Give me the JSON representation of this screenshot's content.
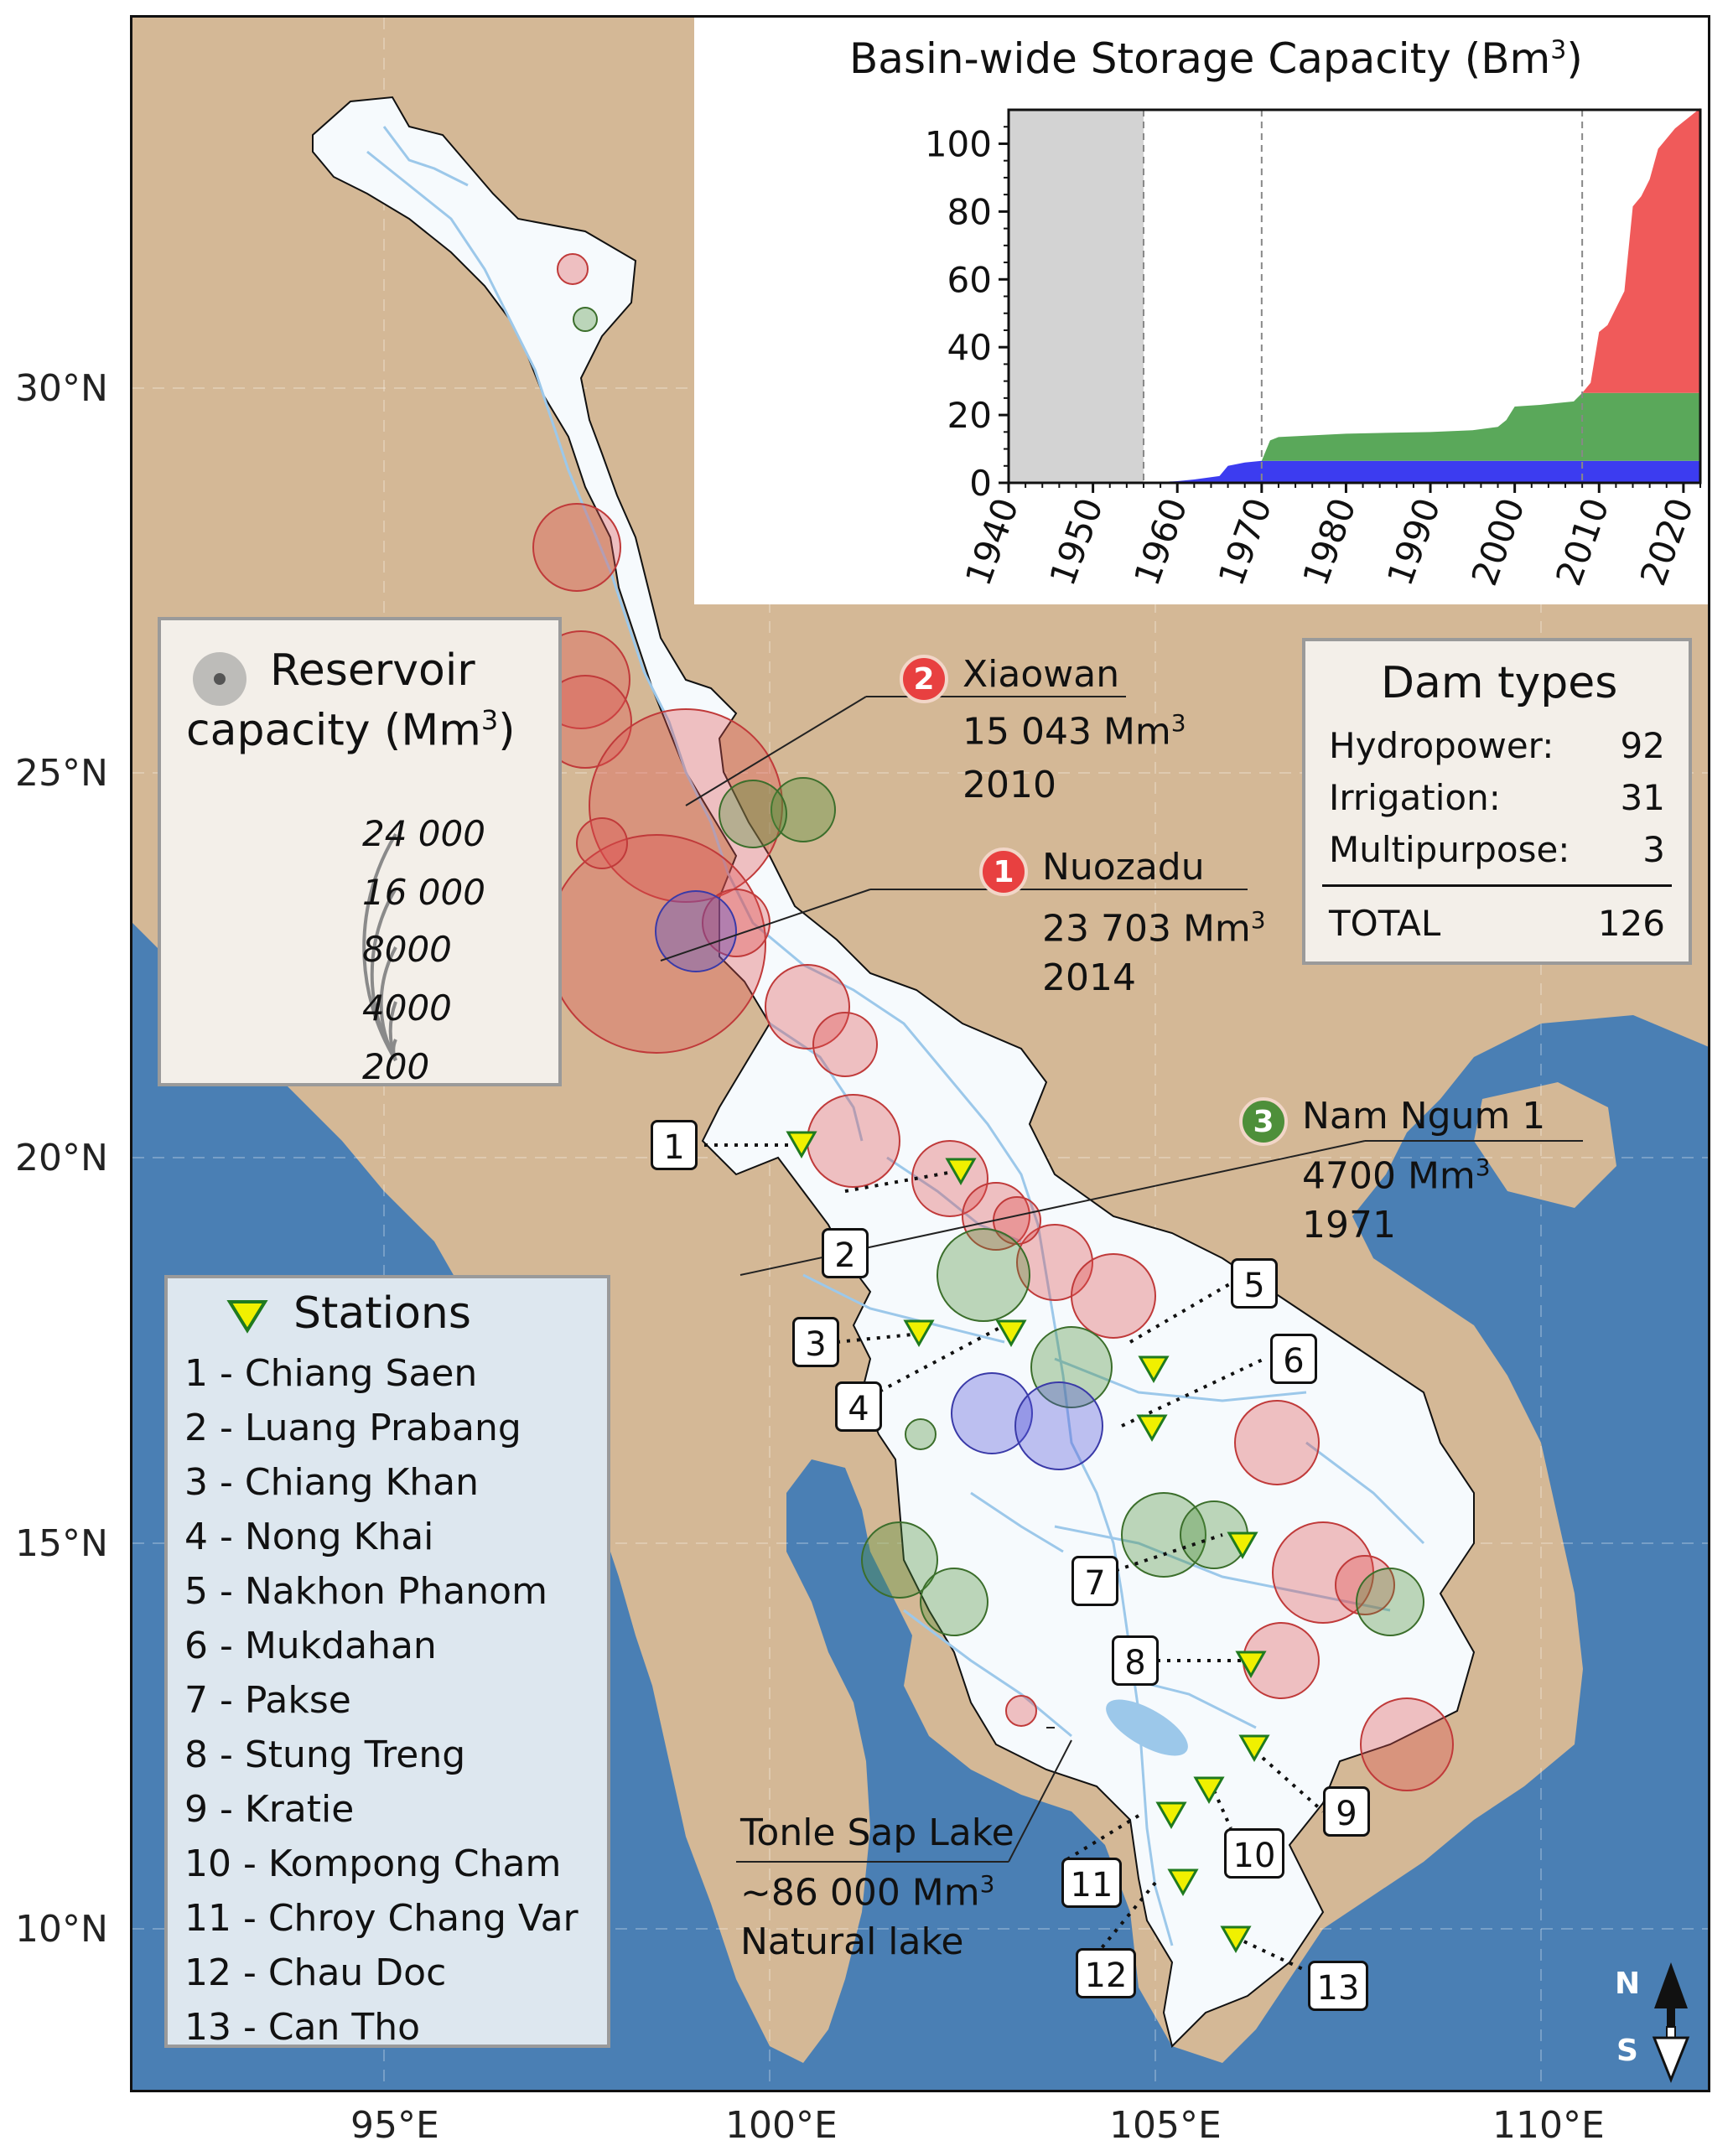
{
  "axes": {
    "lat_labels": [
      "30°N",
      "25°N",
      "20°N",
      "15°N",
      "10°N"
    ],
    "lon_labels": [
      "95°E",
      "100°E",
      "105°E",
      "110°E"
    ]
  },
  "inset_chart": {
    "title_main": "Basin-wide Storage Capacity (Bm",
    "title_sup": "3",
    "title_end": ")"
  },
  "chart_data": {
    "type": "area",
    "title": "Basin-wide Storage Capacity (Bm³)",
    "xlim": [
      1940,
      2022
    ],
    "ylim": [
      0,
      110
    ],
    "x_ticks": [
      "1940",
      "1950",
      "1960",
      "1970",
      "1980",
      "1990",
      "2000",
      "2010",
      "2020"
    ],
    "y_ticks": [
      "0",
      "20",
      "40",
      "60",
      "80",
      "100"
    ],
    "shaded_period": [
      1940,
      1956
    ],
    "dashed_lines": [
      1956,
      1970,
      2008
    ],
    "colors": {
      "blue": "#3c3cf0",
      "green": "#5aa85a",
      "red": "#f05a5a",
      "shade": "#d3d3d3"
    },
    "series": [
      {
        "color": "#3c3cf0",
        "x": [
          1956,
          1960,
          1962,
          1965,
          1966,
          1968,
          1970,
          1971,
          2022
        ],
        "values": [
          0,
          0.5,
          1,
          2,
          5,
          6,
          6.5,
          6.5,
          6.5
        ]
      },
      {
        "color": "#5aa85a",
        "x": [
          1956,
          1970,
          1971,
          1972,
          1980,
          1990,
          1995,
          1998,
          1999,
          2000,
          2003,
          2005,
          2007,
          2008,
          2022
        ],
        "values": [
          0,
          0,
          6,
          7,
          8,
          8.5,
          9,
          10,
          12,
          16,
          16.5,
          17,
          17.5,
          20,
          20
        ]
      },
      {
        "color": "#f05a5a",
        "x": [
          2008,
          2009,
          2010,
          2011,
          2012,
          2013,
          2014,
          2015,
          2016,
          2017,
          2018,
          2019,
          2020,
          2021,
          2022
        ],
        "values": [
          0,
          3,
          18,
          20,
          25,
          30,
          55,
          58,
          63,
          72,
          75,
          78,
          80,
          82,
          84
        ]
      }
    ]
  },
  "reservoir_legend": {
    "title_line1": "Reservoir",
    "title_line2": "capacity (Mm",
    "title_sup": "3",
    "title_end": ")",
    "sizes": [
      "24 000",
      "16 000",
      "8000",
      "4000",
      "200"
    ]
  },
  "dam_types": {
    "title": "Dam types",
    "rows": [
      {
        "label": "Hydropower:",
        "value": "92"
      },
      {
        "label": "Irrigation:",
        "value": "31"
      },
      {
        "label": "Multipurpose:",
        "value": "3"
      }
    ],
    "total_label": "TOTAL",
    "total_value": "126"
  },
  "annotations": [
    {
      "badge": "2",
      "badge_color": "#e84040",
      "name": "Xiaowan",
      "capacity": "15 043 Mm",
      "sup": "3",
      "year": "2010"
    },
    {
      "badge": "1",
      "badge_color": "#e84040",
      "name": "Nuozadu",
      "capacity": "23 703 Mm",
      "sup": "3",
      "year": "2014"
    },
    {
      "badge": "3",
      "badge_color": "#4e8f3a",
      "name": "Nam Ngum 1",
      "capacity": "4700 Mm",
      "sup": "3",
      "year": "1971"
    }
  ],
  "tonle_sap": {
    "name": "Tonle Sap Lake",
    "capacity": "~86 000 Mm",
    "sup": "3",
    "note": "Natural lake"
  },
  "stations_legend": {
    "title": "Stations",
    "items": [
      "1 - Chiang Saen",
      "2 - Luang Prabang",
      "3 - Chiang Khan",
      "4 - Nong Khai",
      "5 - Nakhon Phanom",
      "6 - Mukdahan",
      "7 - Pakse",
      "8 - Stung Treng",
      "9 - Kratie",
      "10 - Kompong Cham",
      "11 - Chroy Chang Var",
      "12 - Chau Doc",
      "13 - Can Tho"
    ]
  },
  "station_labels": [
    "1",
    "2",
    "3",
    "4",
    "5",
    "6",
    "7",
    "8",
    "9",
    "10",
    "11",
    "12",
    "13"
  ],
  "north_arrow": {
    "north": "N",
    "south": "S"
  },
  "colors": {
    "land": "#d4b896",
    "ocean": "#4a7fb4",
    "basin": "#f6fafd",
    "river": "#9cc8ea",
    "hydropower": "#e05050",
    "irrigation": "#4e8f3a",
    "multipurpose": "#5050d8",
    "station_marker": "#f0f000"
  }
}
